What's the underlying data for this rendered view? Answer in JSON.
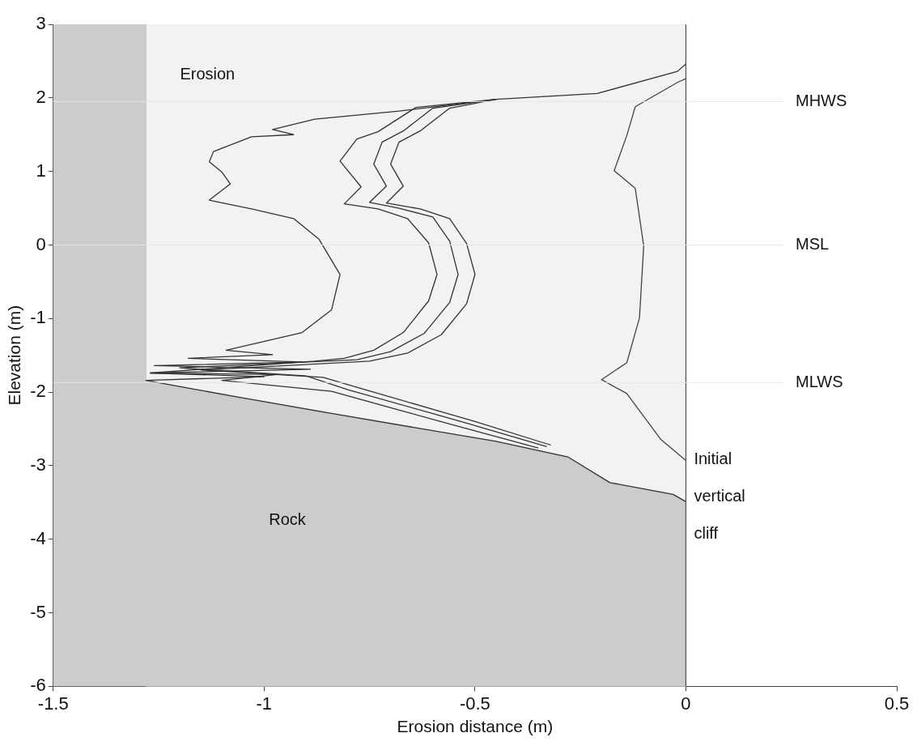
{
  "chart_data": {
    "type": "line",
    "xlabel": "Erosion distance (m)",
    "ylabel": "Elevation (m)",
    "xlim": [
      -1.5,
      0.5
    ],
    "xticks": [
      -1.5,
      -1,
      -0.5,
      0,
      0.5
    ],
    "ylim": [
      -6,
      3
    ],
    "yticks": [
      -6,
      -5,
      -4,
      -3,
      -2,
      -1,
      0,
      1,
      2,
      3
    ],
    "series": [
      {
        "type": "area",
        "name": "Rock",
        "color": "#cccccc",
        "x": [
          -1.5,
          -1.5,
          -1.28,
          -1.28,
          -1.06,
          -0.84,
          -0.45,
          -0.28,
          -0.18,
          -0.03,
          0,
          0
        ],
        "values": [
          -6,
          3,
          3,
          -1.84,
          -2.07,
          -2.29,
          -2.67,
          -2.88,
          -3.23,
          -3.39,
          -3.49,
          -6
        ]
      },
      {
        "color": "#333333",
        "x": [
          0,
          -0.02,
          -0.21,
          -0.45,
          -0.68,
          -0.88,
          -0.98,
          -0.93,
          -1.03,
          -1.12,
          -1.13,
          -1.1,
          -1.08,
          -1.13,
          -1.03,
          -0.93,
          -0.87,
          -0.82,
          -0.84,
          -0.91,
          -1.09,
          -0.98,
          -1.18,
          -0.91,
          -1.26,
          -0.89,
          -1.27,
          -1,
          -1.28,
          -1.06,
          -0.84,
          -0.45,
          -0.28,
          -0.18,
          -0.03,
          0
        ],
        "values": [
          2.46,
          2.36,
          2.06,
          1.98,
          1.82,
          1.71,
          1.57,
          1.5,
          1.47,
          1.27,
          1.13,
          0.99,
          0.83,
          0.61,
          0.49,
          0.36,
          0.08,
          -0.4,
          -0.88,
          -1.19,
          -1.43,
          -1.49,
          -1.54,
          -1.59,
          -1.64,
          -1.69,
          -1.74,
          -1.79,
          -1.84,
          -2.07,
          -2.29,
          -2.67,
          -2.88,
          -3.23,
          -3.39,
          -3.49
        ]
      },
      {
        "color": "#333333",
        "x": [
          -0.45,
          -0.64,
          -0.73,
          -0.78,
          -0.82,
          -0.77,
          -0.81,
          -0.73,
          -0.66,
          -0.61,
          -0.59,
          -0.61,
          -0.67,
          -0.74,
          -0.81,
          -0.88,
          -1.27,
          -0.97,
          -1.1,
          -0.84,
          -0.55,
          -0.35
        ],
        "values": [
          1.98,
          1.87,
          1.54,
          1.44,
          1.14,
          0.79,
          0.56,
          0.49,
          0.36,
          0.03,
          -0.4,
          -0.76,
          -1.19,
          -1.43,
          -1.54,
          -1.58,
          -1.74,
          -1.76,
          -1.84,
          -1.99,
          -2.45,
          -2.76
        ]
      },
      {
        "color": "#333333",
        "x": [
          -0.45,
          -0.6,
          -0.67,
          -0.72,
          -0.74,
          -0.71,
          -0.75,
          -0.68,
          -0.6,
          -0.56,
          -0.54,
          -0.56,
          -0.62,
          -0.7,
          -0.78,
          -1.2,
          -0.9,
          -0.8,
          -0.52,
          -0.33
        ],
        "values": [
          1.98,
          1.86,
          1.55,
          1.4,
          1.1,
          0.8,
          0.58,
          0.5,
          0.38,
          0.05,
          -0.4,
          -0.78,
          -1.2,
          -1.45,
          -1.56,
          -1.67,
          -1.78,
          -1.97,
          -2.42,
          -2.74
        ]
      },
      {
        "color": "#333333",
        "x": [
          -0.45,
          -0.56,
          -0.63,
          -0.68,
          -0.7,
          -0.67,
          -0.71,
          -0.63,
          -0.56,
          -0.52,
          -0.5,
          -0.52,
          -0.58,
          -0.66,
          -0.75,
          -1.15,
          -0.86,
          -0.77,
          -0.5,
          -0.32
        ],
        "values": [
          1.98,
          1.86,
          1.55,
          1.4,
          1.1,
          0.8,
          0.57,
          0.49,
          0.36,
          0.02,
          -0.4,
          -0.8,
          -1.22,
          -1.47,
          -1.58,
          -1.7,
          -1.8,
          -1.95,
          -2.4,
          -2.72
        ]
      },
      {
        "color": "#444444",
        "x": [
          0,
          -0.02,
          -0.12,
          -0.14,
          -0.17,
          -0.12,
          -0.1,
          -0.11,
          -0.14,
          -0.2,
          -0.14,
          -0.06,
          0
        ],
        "values": [
          2.26,
          2.21,
          1.88,
          1.49,
          1.01,
          0.77,
          -0.01,
          -0.99,
          -1.6,
          -1.83,
          -2.02,
          -2.64,
          -2.93
        ]
      },
      {
        "color": "#555555",
        "x": [
          0,
          0
        ],
        "values": [
          -6,
          3
        ]
      }
    ],
    "ref_lines": [
      {
        "axis": "y",
        "value": 1.95,
        "label": "MHWS",
        "color": "#e6e6e6"
      },
      {
        "axis": "y",
        "value": 0,
        "label": "MSL",
        "color": "#e6e6e6"
      },
      {
        "axis": "y",
        "value": -1.87,
        "label": "MLWS",
        "color": "#e6e6e6"
      }
    ],
    "bands": [
      {
        "axis": "x",
        "from": -1.28,
        "to": 0,
        "label": "Erosion",
        "color": "#f2f2f2"
      }
    ],
    "annotations": [
      "Initial",
      "vertical",
      "cliff"
    ]
  }
}
